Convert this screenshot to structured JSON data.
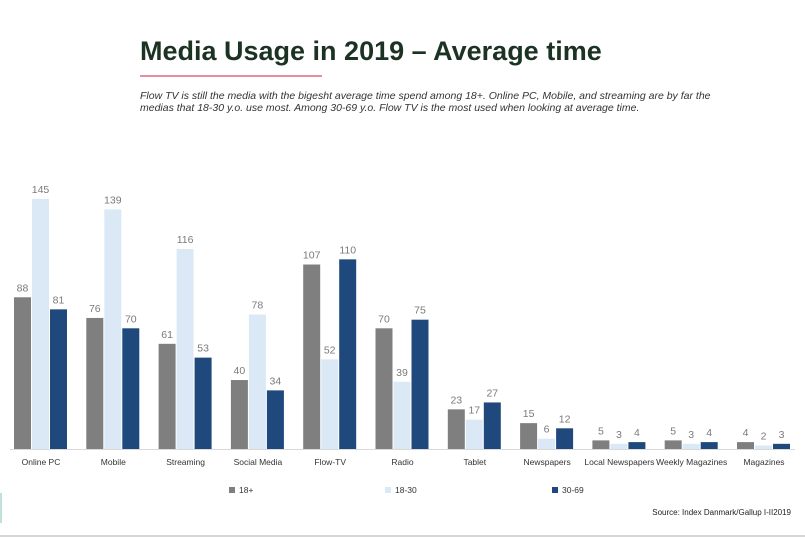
{
  "title": "Media Usage in 2019 – Average time",
  "subtitle": "Flow TV is still the media with the bigesht average time spend among 18+. Online PC, Mobile, and streaming  are by far the medias that 18-30 y.o. use most. Among 30-69 y.o. Flow TV is the most used when looking at average time.",
  "source": "Source: Index Danmark/Gallup I-II2019",
  "colors": {
    "accent_rule": "#e58fa0",
    "title": "#1c3324"
  },
  "chart_data": {
    "type": "bar",
    "categories": [
      "Online PC",
      "Mobile",
      "Streaming",
      "Social Media",
      "Flow-TV",
      "Radio",
      "Tablet",
      "Newspapers",
      "Local Newspapers",
      "Weekly Magazines",
      "Magazines"
    ],
    "series": [
      {
        "name": "18+",
        "color": "#7f7f7f",
        "values": [
          88,
          76,
          61,
          40,
          107,
          70,
          23,
          15,
          5,
          5,
          4
        ]
      },
      {
        "name": "18-30",
        "color": "#dbe9f6",
        "values": [
          145,
          139,
          116,
          78,
          52,
          39,
          17,
          6,
          3,
          3,
          2
        ]
      },
      {
        "name": "30-69",
        "color": "#1f497d",
        "values": [
          81,
          70,
          53,
          34,
          110,
          75,
          27,
          12,
          4,
          4,
          3
        ]
      }
    ],
    "ylim": [
      0,
      145
    ],
    "grid": false,
    "legend_position": "bottom",
    "data_labels": true
  }
}
